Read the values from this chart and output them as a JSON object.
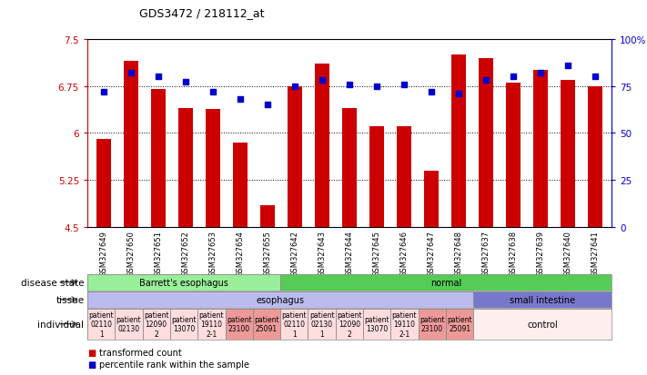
{
  "title": "GDS3472 / 218112_at",
  "samples": [
    "GSM327649",
    "GSM327650",
    "GSM327651",
    "GSM327652",
    "GSM327653",
    "GSM327654",
    "GSM327655",
    "GSM327642",
    "GSM327643",
    "GSM327644",
    "GSM327645",
    "GSM327646",
    "GSM327647",
    "GSM327648",
    "GSM327637",
    "GSM327638",
    "GSM327639",
    "GSM327640",
    "GSM327641"
  ],
  "bar_values": [
    5.9,
    7.15,
    6.7,
    6.4,
    6.38,
    5.85,
    4.85,
    6.75,
    7.1,
    6.4,
    6.1,
    6.1,
    5.4,
    7.25,
    7.2,
    6.8,
    7.0,
    6.85,
    6.75
  ],
  "dot_values": [
    72,
    82,
    80,
    77,
    72,
    68,
    65,
    75,
    78,
    76,
    75,
    76,
    72,
    71,
    78,
    80,
    82,
    86,
    80
  ],
  "ylim_left": [
    4.5,
    7.5
  ],
  "ylim_right": [
    0,
    100
  ],
  "yticks_left": [
    4.5,
    5.25,
    6.0,
    6.75,
    7.5
  ],
  "yticks_right": [
    0,
    25,
    50,
    75,
    100
  ],
  "ytick_labels_left": [
    "4.5",
    "5.25",
    "6",
    "6.75",
    "7.5"
  ],
  "ytick_labels_right": [
    "0",
    "25",
    "50",
    "75",
    "100%"
  ],
  "bar_color": "#cc0000",
  "dot_color": "#0000cc",
  "bg_color": "#ffffff",
  "disease_state_items": [
    {
      "label": "Barrett's esophagus",
      "start": 0,
      "end": 7,
      "color": "#99ee99"
    },
    {
      "label": "normal",
      "start": 7,
      "end": 19,
      "color": "#55cc55"
    }
  ],
  "tissue_items": [
    {
      "label": "esophagus",
      "start": 0,
      "end": 14,
      "color": "#bbbbee"
    },
    {
      "label": "small intestine",
      "start": 14,
      "end": 19,
      "color": "#7777cc"
    }
  ],
  "individual_items": [
    {
      "label": "patient\n02110\n1",
      "start": 0,
      "end": 1,
      "color": "#ffdddd"
    },
    {
      "label": "patient\n02130",
      "start": 1,
      "end": 2,
      "color": "#ffdddd"
    },
    {
      "label": "patient\n12090\n2",
      "start": 2,
      "end": 3,
      "color": "#ffdddd"
    },
    {
      "label": "patient\n13070",
      "start": 3,
      "end": 4,
      "color": "#ffdddd"
    },
    {
      "label": "patient\n19110\n2-1",
      "start": 4,
      "end": 5,
      "color": "#ffdddd"
    },
    {
      "label": "patient\n23100",
      "start": 5,
      "end": 6,
      "color": "#ee9999"
    },
    {
      "label": "patient\n25091",
      "start": 6,
      "end": 7,
      "color": "#ee9999"
    },
    {
      "label": "patient\n02110\n1",
      "start": 7,
      "end": 8,
      "color": "#ffdddd"
    },
    {
      "label": "patient\n02130\n1",
      "start": 8,
      "end": 9,
      "color": "#ffdddd"
    },
    {
      "label": "patient\n12090\n2",
      "start": 9,
      "end": 10,
      "color": "#ffdddd"
    },
    {
      "label": "patient\n13070",
      "start": 10,
      "end": 11,
      "color": "#ffdddd"
    },
    {
      "label": "patient\n19110\n2-1",
      "start": 11,
      "end": 12,
      "color": "#ffdddd"
    },
    {
      "label": "patient\n23100",
      "start": 12,
      "end": 13,
      "color": "#ee9999"
    },
    {
      "label": "patient\n25091",
      "start": 13,
      "end": 14,
      "color": "#ee9999"
    },
    {
      "label": "control",
      "start": 14,
      "end": 19,
      "color": "#ffeeee"
    }
  ]
}
